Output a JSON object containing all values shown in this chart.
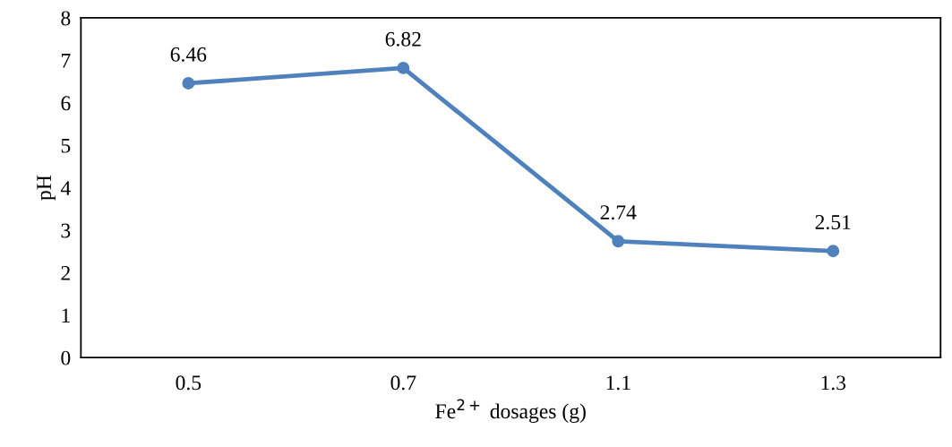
{
  "chart_data": {
    "type": "line",
    "xlabel": "Fe$^{2+}$ dosages (g)",
    "ylabel": "pH",
    "categories": [
      "0.5",
      "0.7",
      "1.1",
      "1.3"
    ],
    "series": [
      {
        "color": "#4f81bd",
        "values": [
          6.46,
          6.82,
          2.74,
          2.51
        ]
      }
    ],
    "ylim": [
      0,
      8
    ],
    "yticks": [
      0,
      1,
      2,
      3,
      4,
      5,
      6,
      7,
      8
    ],
    "marker": "circle",
    "line_style": "solid",
    "data_labels": true,
    "grid": false,
    "legend": false
  }
}
